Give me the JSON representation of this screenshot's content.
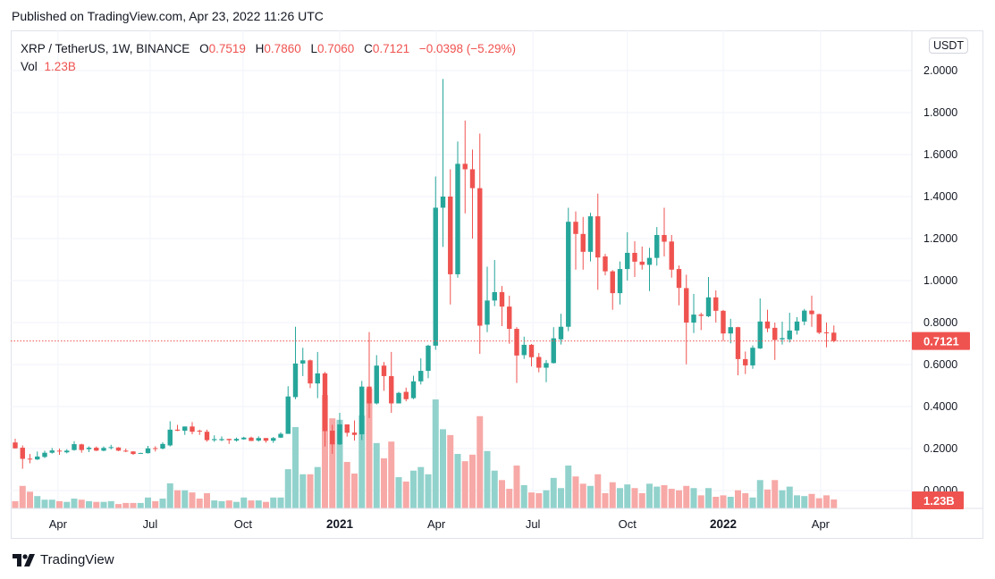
{
  "header": {
    "published": "Published on TradingView.com, Apr 23, 2022 11:26 UTC"
  },
  "legend": {
    "symbol": "XRP / TetherUS, 1W, BINANCE",
    "o_label": "O",
    "o": "0.7519",
    "h_label": "H",
    "h": "0.7860",
    "l_label": "L",
    "l": "0.7060",
    "c_label": "C",
    "c": "0.7121",
    "change": "−0.0398 (−5.29%)",
    "vol_label": "Vol",
    "vol": "1.23B"
  },
  "currency_button": "USDT",
  "footer": {
    "brand": "TradingView"
  },
  "colors": {
    "up": "#26a69a",
    "down": "#ef5350",
    "up_volume": "#92d2cc",
    "down_volume": "#f7a9a7",
    "grid": "#f0f3fa"
  },
  "chart_data": {
    "type": "candlestick",
    "symbol": "XRP / TetherUS",
    "interval": "1W",
    "exchange": "BINANCE",
    "ylim": [
      0,
      2.0
    ],
    "y_ticks": [
      "0.0000",
      "0.2000",
      "0.4000",
      "0.6000",
      "0.8000",
      "1.0000",
      "1.2000",
      "1.4000",
      "1.6000",
      "1.8000",
      "2.0000"
    ],
    "x_ticks": [
      "Apr",
      "Jul",
      "Oct",
      "2021",
      "Apr",
      "Jul",
      "Oct",
      "2022",
      "Apr"
    ],
    "x_ticks_bold": [
      "2021",
      "2022"
    ],
    "last_price_label": "0.7121",
    "last_volume_label": "1.23B",
    "grid": true,
    "volume_unit": "B",
    "candles_ohlcv": [
      [
        0.229,
        0.247,
        0.2,
        0.201,
        1.0
      ],
      [
        0.204,
        0.215,
        0.104,
        0.151,
        3.1
      ],
      [
        0.152,
        0.174,
        0.13,
        0.148,
        2.3
      ],
      [
        0.148,
        0.186,
        0.146,
        0.162,
        1.7
      ],
      [
        0.16,
        0.19,
        0.155,
        0.18,
        1.2
      ],
      [
        0.18,
        0.203,
        0.176,
        0.191,
        1.2
      ],
      [
        0.19,
        0.2,
        0.17,
        0.186,
        1.0
      ],
      [
        0.182,
        0.197,
        0.177,
        0.19,
        0.9
      ],
      [
        0.193,
        0.235,
        0.19,
        0.221,
        1.35
      ],
      [
        0.22,
        0.223,
        0.18,
        0.193,
        1.2
      ],
      [
        0.197,
        0.21,
        0.183,
        0.204,
        1.0
      ],
      [
        0.204,
        0.21,
        0.188,
        0.19,
        0.9
      ],
      [
        0.19,
        0.21,
        0.187,
        0.203,
        0.9
      ],
      [
        0.205,
        0.218,
        0.196,
        0.207,
        1.0
      ],
      [
        0.205,
        0.207,
        0.188,
        0.19,
        0.6
      ],
      [
        0.19,
        0.2,
        0.183,
        0.186,
        0.75
      ],
      [
        0.186,
        0.188,
        0.17,
        0.174,
        0.75
      ],
      [
        0.178,
        0.18,
        0.176,
        0.179,
        0.75
      ],
      [
        0.178,
        0.213,
        0.176,
        0.201,
        1.5
      ],
      [
        0.202,
        0.211,
        0.186,
        0.198,
        1.0
      ],
      [
        0.2,
        0.23,
        0.196,
        0.222,
        1.35
      ],
      [
        0.215,
        0.33,
        0.21,
        0.29,
        3.45
      ],
      [
        0.29,
        0.313,
        0.283,
        0.285,
        2.5
      ],
      [
        0.285,
        0.305,
        0.265,
        0.305,
        2.5
      ],
      [
        0.305,
        0.326,
        0.268,
        0.28,
        2.2
      ],
      [
        0.285,
        0.29,
        0.265,
        0.282,
        1.35
      ],
      [
        0.28,
        0.29,
        0.233,
        0.24,
        2.1
      ],
      [
        0.24,
        0.263,
        0.232,
        0.245,
        1.1
      ],
      [
        0.24,
        0.258,
        0.235,
        0.245,
        1.0
      ],
      [
        0.246,
        0.246,
        0.222,
        0.24,
        1.1
      ],
      [
        0.238,
        0.252,
        0.233,
        0.246,
        0.9
      ],
      [
        0.244,
        0.256,
        0.242,
        0.252,
        1.5
      ],
      [
        0.252,
        0.257,
        0.236,
        0.236,
        1.1
      ],
      [
        0.238,
        0.258,
        0.233,
        0.25,
        1.1
      ],
      [
        0.25,
        0.25,
        0.228,
        0.237,
        0.9
      ],
      [
        0.237,
        0.255,
        0.227,
        0.25,
        1.5
      ],
      [
        0.252,
        0.277,
        0.25,
        0.27,
        1.5
      ],
      [
        0.27,
        0.497,
        0.27,
        0.448,
        5.4
      ],
      [
        0.445,
        0.78,
        0.435,
        0.605,
        11.2
      ],
      [
        0.605,
        0.68,
        0.545,
        0.62,
        4.7
      ],
      [
        0.62,
        0.624,
        0.488,
        0.51,
        4.7
      ],
      [
        0.51,
        0.66,
        0.44,
        0.558,
        5.7
      ],
      [
        0.558,
        0.565,
        0.21,
        0.283,
        15.6
      ],
      [
        0.285,
        0.313,
        0.175,
        0.22,
        12.4
      ],
      [
        0.22,
        0.37,
        0.217,
        0.315,
        12.2
      ],
      [
        0.315,
        0.315,
        0.257,
        0.275,
        6.4
      ],
      [
        0.276,
        0.334,
        0.238,
        0.265,
        4.8
      ],
      [
        0.268,
        0.522,
        0.24,
        0.495,
        12.8
      ],
      [
        0.495,
        0.755,
        0.345,
        0.415,
        16.5
      ],
      [
        0.415,
        0.645,
        0.41,
        0.595,
        9.0
      ],
      [
        0.595,
        0.612,
        0.475,
        0.545,
        6.9
      ],
      [
        0.545,
        0.66,
        0.37,
        0.415,
        9.2
      ],
      [
        0.415,
        0.47,
        0.415,
        0.465,
        4.3
      ],
      [
        0.47,
        0.49,
        0.425,
        0.435,
        3.7
      ],
      [
        0.44,
        0.547,
        0.435,
        0.52,
        5.2
      ],
      [
        0.52,
        0.63,
        0.505,
        0.57,
        5.7
      ],
      [
        0.57,
        0.694,
        0.535,
        0.69,
        4.7
      ],
      [
        0.69,
        1.496,
        0.67,
        1.347,
        15.0
      ],
      [
        1.347,
        1.96,
        1.16,
        1.4,
        10.9
      ],
      [
        1.4,
        1.53,
        0.886,
        1.03,
        10.1
      ],
      [
        1.03,
        1.662,
        1.014,
        1.556,
        7.5
      ],
      [
        1.556,
        1.762,
        1.32,
        1.53,
        6.5
      ],
      [
        1.53,
        1.624,
        1.2,
        1.44,
        7.4
      ],
      [
        1.44,
        1.7,
        0.651,
        0.785,
        12.7
      ],
      [
        0.79,
        1.066,
        0.754,
        0.905,
        7.9
      ],
      [
        0.905,
        1.098,
        0.878,
        0.945,
        5.2
      ],
      [
        0.945,
        0.974,
        0.783,
        0.876,
        3.9
      ],
      [
        0.876,
        0.928,
        0.699,
        0.77,
        2.7
      ],
      [
        0.77,
        0.778,
        0.512,
        0.643,
        5.9
      ],
      [
        0.645,
        0.733,
        0.627,
        0.694,
        3.2
      ],
      [
        0.694,
        0.698,
        0.591,
        0.635,
        2.2
      ],
      [
        0.636,
        0.655,
        0.563,
        0.585,
        2.1
      ],
      [
        0.585,
        0.622,
        0.516,
        0.607,
        2.5
      ],
      [
        0.607,
        0.778,
        0.605,
        0.725,
        4.2
      ],
      [
        0.72,
        0.842,
        0.695,
        0.78,
        2.8
      ],
      [
        0.78,
        1.347,
        0.759,
        1.28,
        5.9
      ],
      [
        1.28,
        1.329,
        1.052,
        1.222,
        4.4
      ],
      [
        1.222,
        1.303,
        1.052,
        1.137,
        3.4
      ],
      [
        1.137,
        1.323,
        1.091,
        1.306,
        3.1
      ],
      [
        1.306,
        1.414,
        0.956,
        1.11,
        4.7
      ],
      [
        1.115,
        1.127,
        1.025,
        1.044,
        2.1
      ],
      [
        1.044,
        1.05,
        0.861,
        0.94,
        3.6
      ],
      [
        0.94,
        1.091,
        0.886,
        1.055,
        2.8
      ],
      [
        1.055,
        1.23,
        1.0,
        1.132,
        3.3
      ],
      [
        1.132,
        1.187,
        1.017,
        1.09,
        2.8
      ],
      [
        1.09,
        1.162,
        1.052,
        1.075,
        2.1
      ],
      [
        1.075,
        1.156,
        0.95,
        1.108,
        3.4
      ],
      [
        1.108,
        1.255,
        1.071,
        1.217,
        3.0
      ],
      [
        1.217,
        1.347,
        1.115,
        1.185,
        3.2
      ],
      [
        1.186,
        1.217,
        1.014,
        1.052,
        2.7
      ],
      [
        1.055,
        1.072,
        0.882,
        0.965,
        2.5
      ],
      [
        0.964,
        1.028,
        0.601,
        0.8,
        3.1
      ],
      [
        0.8,
        0.936,
        0.75,
        0.838,
        2.8
      ],
      [
        0.838,
        0.847,
        0.764,
        0.832,
        1.8
      ],
      [
        0.83,
        1.017,
        0.826,
        0.92,
        2.8
      ],
      [
        0.92,
        0.953,
        0.8,
        0.856,
        1.6
      ],
      [
        0.856,
        0.86,
        0.712,
        0.748,
        1.8
      ],
      [
        0.748,
        0.818,
        0.701,
        0.778,
        1.6
      ],
      [
        0.778,
        0.78,
        0.549,
        0.626,
        2.5
      ],
      [
        0.626,
        0.662,
        0.555,
        0.596,
        2.1
      ],
      [
        0.596,
        0.691,
        0.58,
        0.68,
        1.5
      ],
      [
        0.677,
        0.915,
        0.674,
        0.805,
        3.9
      ],
      [
        0.805,
        0.861,
        0.754,
        0.772,
        2.6
      ],
      [
        0.775,
        0.8,
        0.622,
        0.717,
        3.9
      ],
      [
        0.72,
        0.804,
        0.695,
        0.726,
        2.5
      ],
      [
        0.72,
        0.847,
        0.705,
        0.762,
        3.0
      ],
      [
        0.762,
        0.826,
        0.743,
        0.805,
        1.8
      ],
      [
        0.805,
        0.865,
        0.787,
        0.857,
        1.7
      ],
      [
        0.857,
        0.928,
        0.78,
        0.84,
        2.0
      ],
      [
        0.84,
        0.842,
        0.745,
        0.752,
        1.4
      ],
      [
        0.753,
        0.8,
        0.682,
        0.75,
        1.8
      ],
      [
        0.7519,
        0.786,
        0.706,
        0.7121,
        1.23
      ]
    ]
  }
}
